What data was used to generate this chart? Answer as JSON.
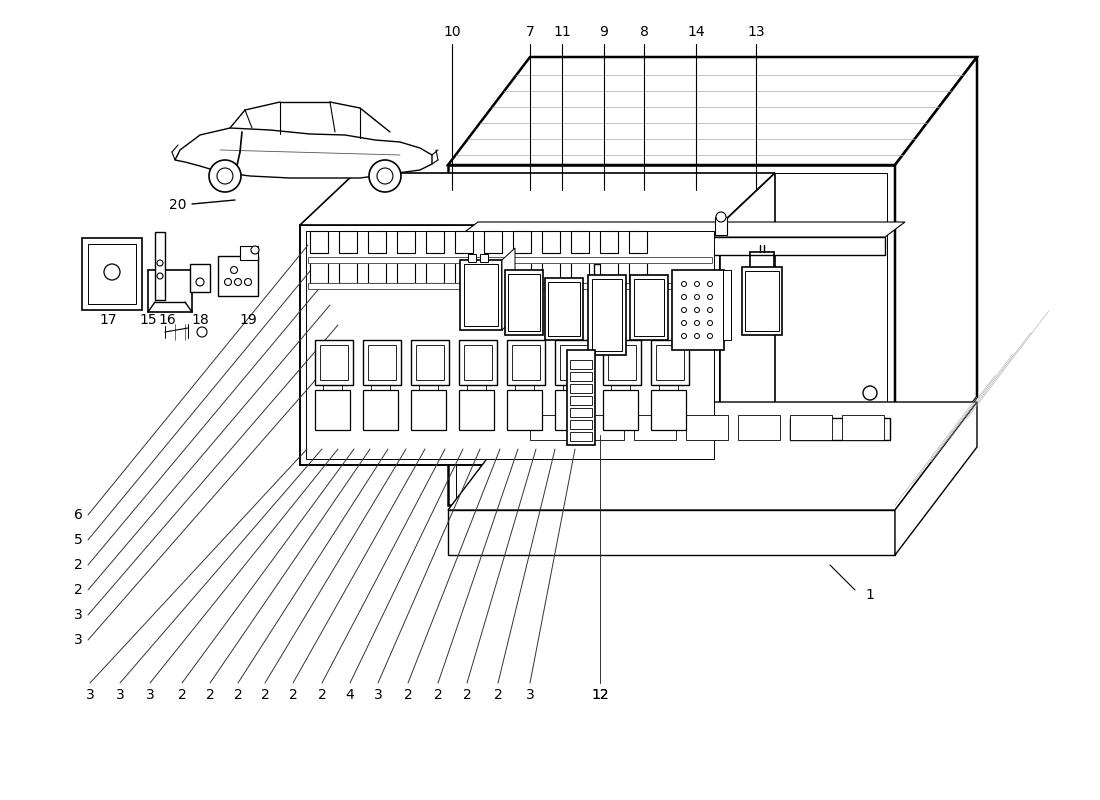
{
  "bg_color": "#ffffff",
  "lc": "#000000",
  "lc_gray": "#888888",
  "lw_main": 1.3,
  "lw_thin": 0.7,
  "lw_thick": 1.8,
  "lw_wire": 0.8,
  "bottom_labels": [
    "3",
    "3",
    "3",
    "2",
    "2",
    "2",
    "2",
    "2",
    "2",
    "4",
    "3",
    "2",
    "2",
    "2",
    "2",
    "3",
    "12"
  ],
  "left_labels": [
    "6",
    "5",
    "2",
    "2",
    "3",
    "3"
  ],
  "top_labels": [
    "10",
    "7",
    "11",
    "9",
    "8",
    "14",
    "13"
  ],
  "label_17": "17",
  "label_15": "15",
  "label_16": "16",
  "label_18": "18",
  "label_19": "19",
  "label_20": "20",
  "label_1": "1",
  "label_12": "12"
}
